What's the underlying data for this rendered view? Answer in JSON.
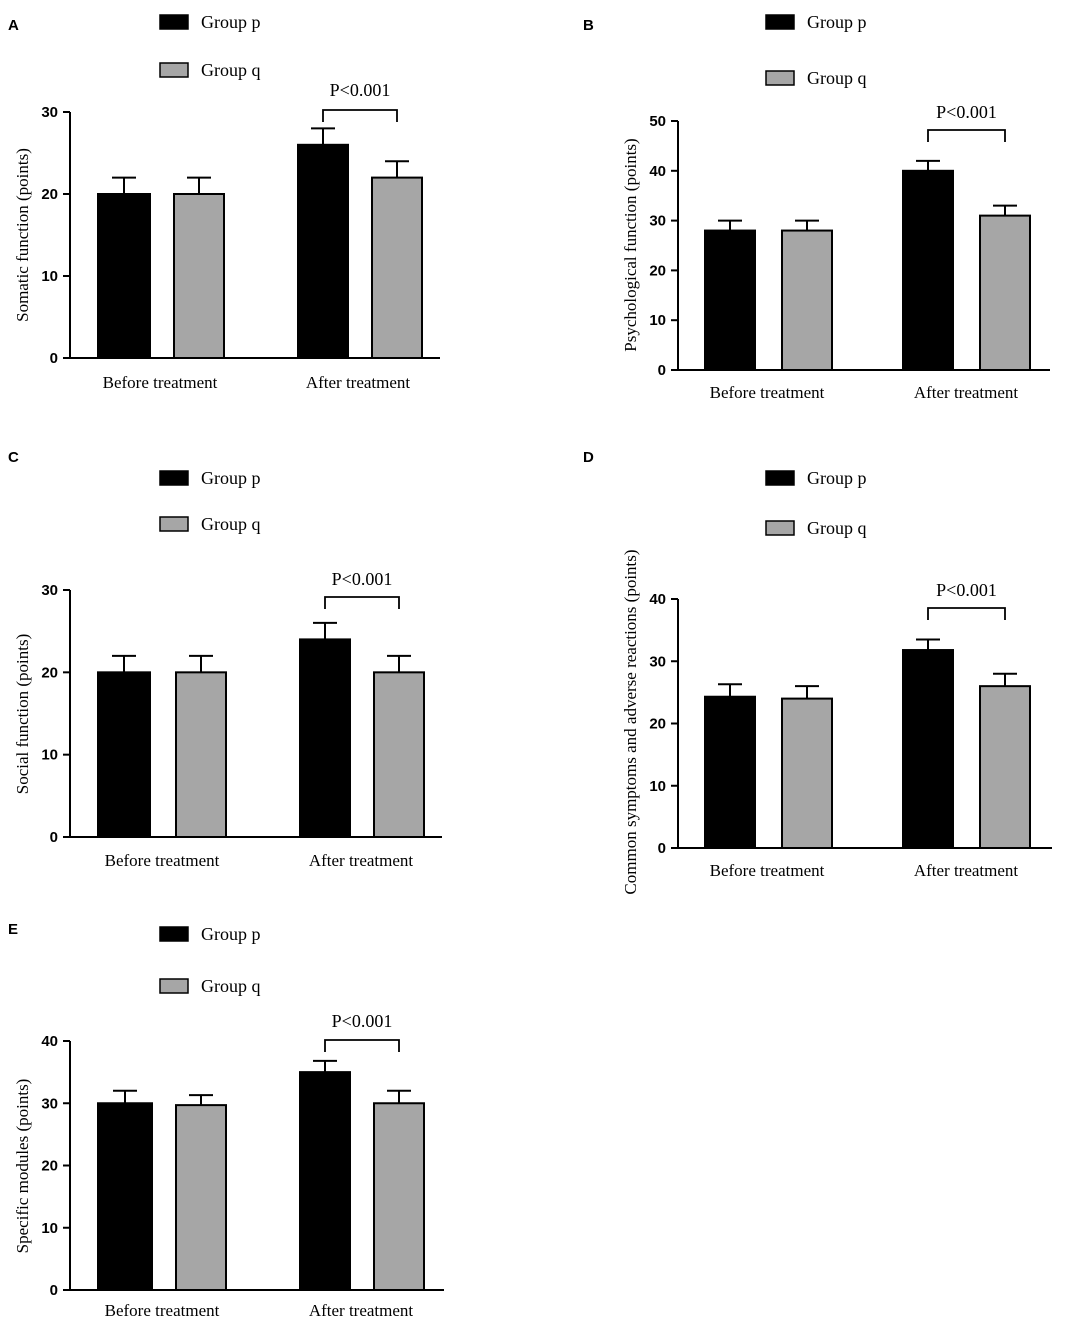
{
  "legend": {
    "group_p": "Group p",
    "group_q": "Group q",
    "group_p_color": "#000000",
    "group_q_color": "#a6a6a6"
  },
  "chart_data": [
    {
      "panel": "A",
      "type": "bar",
      "categories": [
        "Before treatment",
        "After treatment"
      ],
      "ylabel": "Somatic function (points)",
      "ylim": [
        0,
        30
      ],
      "yticks": [
        0,
        10,
        20,
        30
      ],
      "series": [
        {
          "name": "Group p",
          "values": [
            20,
            26
          ],
          "errors": [
            2,
            2
          ]
        },
        {
          "name": "Group q",
          "values": [
            20,
            22
          ],
          "errors": [
            2,
            2
          ]
        }
      ],
      "annotation": {
        "text": "P<0.001",
        "category": "After treatment"
      }
    },
    {
      "panel": "B",
      "type": "bar",
      "categories": [
        "Before treatment",
        "After treatment"
      ],
      "ylabel": "Psychological function (points)",
      "ylim": [
        0,
        50
      ],
      "yticks": [
        0,
        10,
        20,
        30,
        40,
        50
      ],
      "series": [
        {
          "name": "Group p",
          "values": [
            28,
            40
          ],
          "errors": [
            2,
            2
          ]
        },
        {
          "name": "Group q",
          "values": [
            28,
            31
          ],
          "errors": [
            2,
            2
          ]
        }
      ],
      "annotation": {
        "text": "P<0.001",
        "category": "After treatment"
      }
    },
    {
      "panel": "C",
      "type": "bar",
      "categories": [
        "Before treatment",
        "After treatment"
      ],
      "ylabel": "Social function (points)",
      "ylim": [
        0,
        30
      ],
      "yticks": [
        0,
        10,
        20,
        30
      ],
      "series": [
        {
          "name": "Group p",
          "values": [
            20,
            24
          ],
          "errors": [
            2,
            2
          ]
        },
        {
          "name": "Group q",
          "values": [
            20,
            20
          ],
          "errors": [
            2,
            2
          ]
        }
      ],
      "annotation": {
        "text": "P<0.001",
        "category": "After treatment"
      }
    },
    {
      "panel": "D",
      "type": "bar",
      "categories": [
        "Before treatment",
        "After treatment"
      ],
      "ylabel": "Common symptoms and adverse reactions (points)",
      "ylim": [
        0,
        40
      ],
      "yticks": [
        0,
        10,
        20,
        30,
        40
      ],
      "series": [
        {
          "name": "Group p",
          "values": [
            24.3,
            31.8
          ],
          "errors": [
            2,
            1.7
          ]
        },
        {
          "name": "Group q",
          "values": [
            24,
            26
          ],
          "errors": [
            2,
            2
          ]
        }
      ],
      "annotation": {
        "text": "P<0.001",
        "category": "After treatment"
      }
    },
    {
      "panel": "E",
      "type": "bar",
      "categories": [
        "Before treatment",
        "After treatment"
      ],
      "ylabel": "Specific modules (points)",
      "ylim": [
        0,
        40
      ],
      "yticks": [
        0,
        10,
        20,
        30,
        40
      ],
      "series": [
        {
          "name": "Group p",
          "values": [
            30,
            35
          ],
          "errors": [
            2,
            1.8
          ]
        },
        {
          "name": "Group q",
          "values": [
            29.7,
            30
          ],
          "errors": [
            1.6,
            2
          ]
        }
      ],
      "annotation": {
        "text": "P<0.001",
        "category": "After treatment"
      }
    }
  ]
}
